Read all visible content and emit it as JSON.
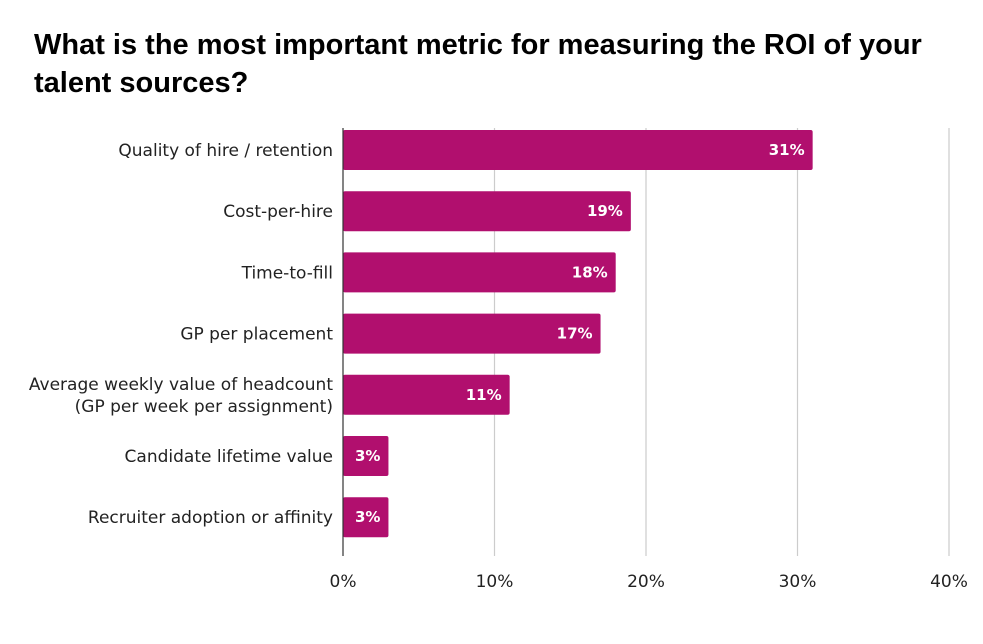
{
  "chart_data": {
    "type": "bar",
    "orientation": "horizontal",
    "title": "What is the most important metric for measuring the ROI of your talent sources?",
    "categories": [
      [
        "Quality of hire / retention"
      ],
      [
        "Cost-per-hire"
      ],
      [
        "Time-to-fill"
      ],
      [
        "GP per placement"
      ],
      [
        "Average weekly value of headcount",
        "(GP per week per assignment)"
      ],
      [
        "Candidate lifetime value"
      ],
      [
        "Recruiter adoption or affinity"
      ]
    ],
    "values": [
      31,
      19,
      18,
      17,
      11,
      3,
      3
    ],
    "value_labels": [
      "31%",
      "19%",
      "18%",
      "17%",
      "11%",
      "3%",
      "3%"
    ],
    "xlim": [
      0,
      40
    ],
    "xticks": [
      0,
      10,
      20,
      30,
      40
    ],
    "xtick_labels": [
      "0%",
      "10%",
      "20%",
      "30%",
      "40%"
    ],
    "grid": "vertical",
    "bar_color": "#b10f6e",
    "grid_color": "#cccccc",
    "axis_color": "#333333"
  }
}
